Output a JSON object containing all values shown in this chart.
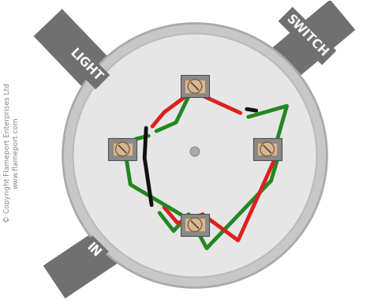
{
  "bg_color": "#ffffff",
  "circle_outer_color": "#c8c8c8",
  "circle_outer_edge": "#aaaaaa",
  "circle_inner_color": "#e6e6e6",
  "circle_inner_edge": "#bbbbbb",
  "conduit_color": "#707070",
  "label_light": "LIGHT",
  "label_switch": "SWITCH",
  "label_in": "IN",
  "label_color": "#ffffff",
  "label_fontsize": 11,
  "connector_frame": "#8a8a8a",
  "connector_bg": "#d4b896",
  "connector_screw_line": "#604020",
  "wire_red": "#dd2020",
  "wire_green": "#228822",
  "wire_black": "#111111",
  "wire_lw": 3.5,
  "copyright_text": "© Copyright Flameport Enterprises Ltd\nwww.flameport.com",
  "copyright_fontsize": 6.5
}
